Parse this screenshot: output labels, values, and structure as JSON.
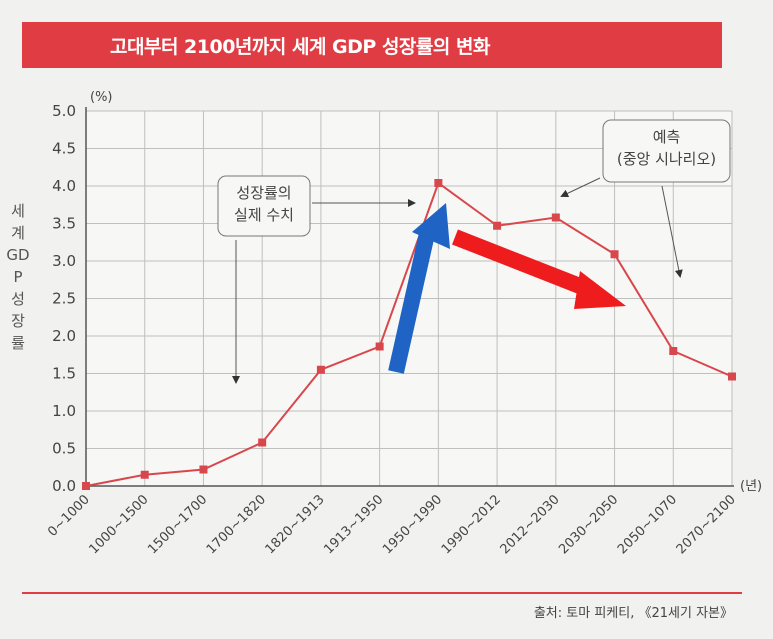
{
  "chart_data": {
    "type": "line",
    "title": "고대부터 2100년까지 세계 GDP 성장률의 변화",
    "ylabel": "세계 GDP 성장률",
    "yunit": "(%)",
    "xunit": "(년)",
    "ylim": [
      0,
      5.0
    ],
    "yticks": [
      "0.0",
      "0.5",
      "1.0",
      "1.5",
      "2.0",
      "2.5",
      "3.0",
      "3.5",
      "4.0",
      "4.5",
      "5.0"
    ],
    "grid": true,
    "line_color": "#d8474c",
    "categories": [
      "0~1000",
      "1000~1500",
      "1500~1700",
      "1700~1820",
      "1820~1913",
      "1913~1950",
      "1950~1990",
      "1990~2012",
      "2012~2030",
      "2030~2050",
      "2050~1070",
      "2070~2100"
    ],
    "values": [
      0.0,
      0.15,
      0.22,
      0.58,
      1.55,
      1.86,
      4.04,
      3.47,
      3.58,
      3.09,
      1.8,
      1.46
    ],
    "annotations": [
      {
        "text": "성장률의\n실제 수치"
      },
      {
        "text": "예측\n(중앙 시나리오)"
      }
    ],
    "overlay_arrows": [
      {
        "color": "#1f63c4",
        "direction": "up"
      },
      {
        "color": "#ee1c1c",
        "direction": "down-right"
      }
    ],
    "source": "출처: 토마 피케티, 《21세기 자본》"
  }
}
